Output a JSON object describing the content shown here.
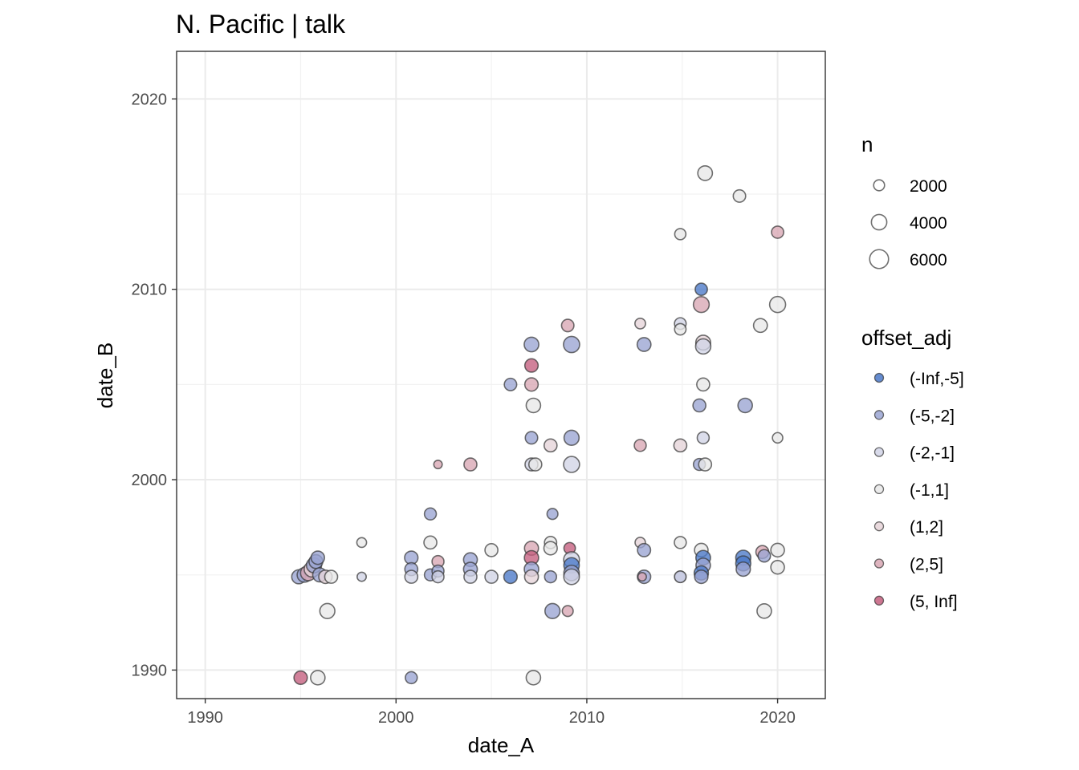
{
  "chart_data": {
    "type": "scatter",
    "title": "N. Pacific | talk",
    "xlabel": "date_A",
    "ylabel": "date_B",
    "xlim": [
      1988.5,
      2022.5
    ],
    "ylim": [
      1988.5,
      2022.5
    ],
    "x_ticks": [
      1990,
      2000,
      2010,
      2020
    ],
    "y_ticks": [
      1990,
      2000,
      2010,
      2020
    ],
    "x_tick_labels": [
      "1990",
      "2000",
      "2010",
      "2020"
    ],
    "y_tick_labels": [
      "1990",
      "2000",
      "2010",
      "2020"
    ],
    "grid": true,
    "legend_position": "right",
    "size_legend": {
      "title": "n",
      "entries": [
        {
          "label": "2000",
          "value": 2000
        },
        {
          "label": "4000",
          "value": 4000
        },
        {
          "label": "6000",
          "value": 6000
        }
      ]
    },
    "color_legend": {
      "title": "offset_adj",
      "entries": [
        {
          "label": "(-Inf,-5]",
          "color": "#4a78c8"
        },
        {
          "label": "(-5,-2]",
          "color": "#9aa4d2"
        },
        {
          "label": "(-2,-1]",
          "color": "#d1d4e6"
        },
        {
          "label": "(-1,1]",
          "color": "#e8e8e8"
        },
        {
          "label": "(1,2]",
          "color": "#e6d3d8"
        },
        {
          "label": "(2,5]",
          "color": "#d8a7b4"
        },
        {
          "label": "(5, Inf]",
          "color": "#c45e7e"
        }
      ]
    },
    "points": [
      {
        "x": 1995.0,
        "y": 1989.6,
        "n": 3000,
        "cat": "(5, Inf]"
      },
      {
        "x": 1995.9,
        "y": 1989.6,
        "n": 3500,
        "cat": "(-1,1]"
      },
      {
        "x": 2000.8,
        "y": 1989.6,
        "n": 2400,
        "cat": "(-5,-2]"
      },
      {
        "x": 2007.2,
        "y": 1989.6,
        "n": 3500,
        "cat": "(-1,1]"
      },
      {
        "x": 1996.4,
        "y": 1993.1,
        "n": 3800,
        "cat": "(-1,1]"
      },
      {
        "x": 2008.2,
        "y": 1993.1,
        "n": 3800,
        "cat": "(-5,-2]"
      },
      {
        "x": 2009.0,
        "y": 1993.1,
        "n": 2000,
        "cat": "(2,5]"
      },
      {
        "x": 2019.3,
        "y": 1993.1,
        "n": 3500,
        "cat": "(-1,1]"
      },
      {
        "x": 1994.9,
        "y": 1994.9,
        "n": 3300,
        "cat": "(-5,-2]"
      },
      {
        "x": 1995.2,
        "y": 1995.0,
        "n": 3600,
        "cat": "(-5,-2]"
      },
      {
        "x": 1995.4,
        "y": 1995.1,
        "n": 4000,
        "cat": "(2,5]"
      },
      {
        "x": 1995.6,
        "y": 1995.3,
        "n": 4200,
        "cat": "(1,2]"
      },
      {
        "x": 1995.7,
        "y": 1995.5,
        "n": 3800,
        "cat": "(-5,-2]"
      },
      {
        "x": 1995.8,
        "y": 1995.7,
        "n": 3200,
        "cat": "(-5,-2]"
      },
      {
        "x": 1995.9,
        "y": 1995.9,
        "n": 3000,
        "cat": "(-5,-2]"
      },
      {
        "x": 1996.0,
        "y": 1995.0,
        "n": 3300,
        "cat": "(-5,-2]"
      },
      {
        "x": 1996.3,
        "y": 1994.9,
        "n": 3000,
        "cat": "(1,2]"
      },
      {
        "x": 1996.6,
        "y": 1994.9,
        "n": 2800,
        "cat": "(-1,1]"
      },
      {
        "x": 1998.2,
        "y": 1996.7,
        "n": 1600,
        "cat": "(-1,1]"
      },
      {
        "x": 1998.2,
        "y": 1994.9,
        "n": 1400,
        "cat": "(-2,-1]"
      },
      {
        "x": 2000.8,
        "y": 1995.9,
        "n": 3000,
        "cat": "(-5,-2]"
      },
      {
        "x": 2000.8,
        "y": 1995.3,
        "n": 2800,
        "cat": "(-5,-2]"
      },
      {
        "x": 2000.8,
        "y": 1994.9,
        "n": 2800,
        "cat": "(-2,-1]"
      },
      {
        "x": 2001.8,
        "y": 1998.2,
        "n": 2400,
        "cat": "(-5,-2]"
      },
      {
        "x": 2001.8,
        "y": 1996.7,
        "n": 2800,
        "cat": "(-1,1]"
      },
      {
        "x": 2001.8,
        "y": 1995.0,
        "n": 2400,
        "cat": "(-5,-2]"
      },
      {
        "x": 2002.2,
        "y": 1995.7,
        "n": 2400,
        "cat": "(2,5]"
      },
      {
        "x": 2002.2,
        "y": 1995.2,
        "n": 2400,
        "cat": "(-5,-2]"
      },
      {
        "x": 2002.2,
        "y": 1994.9,
        "n": 2400,
        "cat": "(-2,-1]"
      },
      {
        "x": 2002.2,
        "y": 2000.8,
        "n": 1200,
        "cat": "(2,5]"
      },
      {
        "x": 2003.9,
        "y": 2000.8,
        "n": 2800,
        "cat": "(2,5]"
      },
      {
        "x": 2003.9,
        "y": 1995.8,
        "n": 3200,
        "cat": "(-5,-2]"
      },
      {
        "x": 2003.9,
        "y": 1995.3,
        "n": 3200,
        "cat": "(-5,-2]"
      },
      {
        "x": 2003.9,
        "y": 1994.9,
        "n": 2800,
        "cat": "(-2,-1]"
      },
      {
        "x": 2005.0,
        "y": 1996.3,
        "n": 2800,
        "cat": "(-1,1]"
      },
      {
        "x": 2005.0,
        "y": 1994.9,
        "n": 2800,
        "cat": "(-2,-1]"
      },
      {
        "x": 2006.0,
        "y": 1994.9,
        "n": 3000,
        "cat": "(-Inf,-5]"
      },
      {
        "x": 2006.0,
        "y": 2005.0,
        "n": 2600,
        "cat": "(-5,-2]"
      },
      {
        "x": 2007.1,
        "y": 2007.1,
        "n": 3600,
        "cat": "(-5,-2]"
      },
      {
        "x": 2007.1,
        "y": 2006.0,
        "n": 3000,
        "cat": "(5, Inf]"
      },
      {
        "x": 2007.1,
        "y": 2005.0,
        "n": 3000,
        "cat": "(2,5]"
      },
      {
        "x": 2007.2,
        "y": 2003.9,
        "n": 3500,
        "cat": "(-1,1]"
      },
      {
        "x": 2007.1,
        "y": 2002.2,
        "n": 2600,
        "cat": "(-5,-2]"
      },
      {
        "x": 2007.1,
        "y": 2000.8,
        "n": 2800,
        "cat": "(-2,-1]"
      },
      {
        "x": 2007.3,
        "y": 2000.8,
        "n": 2800,
        "cat": "(-1,1]"
      },
      {
        "x": 2007.1,
        "y": 1996.4,
        "n": 3300,
        "cat": "(2,5]"
      },
      {
        "x": 2007.1,
        "y": 1995.9,
        "n": 3400,
        "cat": "(5, Inf]"
      },
      {
        "x": 2007.1,
        "y": 1995.3,
        "n": 3500,
        "cat": "(-5,-2]"
      },
      {
        "x": 2007.1,
        "y": 1994.9,
        "n": 3200,
        "cat": "(1,2]"
      },
      {
        "x": 2008.1,
        "y": 2001.8,
        "n": 2800,
        "cat": "(1,2]"
      },
      {
        "x": 2008.2,
        "y": 1998.2,
        "n": 2000,
        "cat": "(-5,-2]"
      },
      {
        "x": 2008.1,
        "y": 1996.7,
        "n": 2500,
        "cat": "(-1,1]"
      },
      {
        "x": 2008.1,
        "y": 1996.4,
        "n": 3000,
        "cat": "(-1,1]"
      },
      {
        "x": 2008.1,
        "y": 1994.9,
        "n": 2400,
        "cat": "(-5,-2]"
      },
      {
        "x": 2009.0,
        "y": 2008.1,
        "n": 2600,
        "cat": "(2,5]"
      },
      {
        "x": 2009.1,
        "y": 1996.4,
        "n": 2200,
        "cat": "(5, Inf]"
      },
      {
        "x": 2009.2,
        "y": 2007.1,
        "n": 4400,
        "cat": "(-5,-2]"
      },
      {
        "x": 2009.2,
        "y": 2002.2,
        "n": 3800,
        "cat": "(-5,-2]"
      },
      {
        "x": 2009.2,
        "y": 2000.8,
        "n": 4300,
        "cat": "(-2,-1]"
      },
      {
        "x": 2009.2,
        "y": 1995.8,
        "n": 4200,
        "cat": "(-2,-1]"
      },
      {
        "x": 2009.2,
        "y": 1995.5,
        "n": 4000,
        "cat": "(-Inf,-5]"
      },
      {
        "x": 2009.2,
        "y": 1995.1,
        "n": 4000,
        "cat": "(-5,-2]"
      },
      {
        "x": 2009.2,
        "y": 1994.9,
        "n": 4100,
        "cat": "(-2,-1]"
      },
      {
        "x": 2012.8,
        "y": 2008.2,
        "n": 1900,
        "cat": "(1,2]"
      },
      {
        "x": 2013.0,
        "y": 2007.1,
        "n": 3200,
        "cat": "(-5,-2]"
      },
      {
        "x": 2012.8,
        "y": 2001.8,
        "n": 2400,
        "cat": "(2,5]"
      },
      {
        "x": 2012.8,
        "y": 1996.7,
        "n": 1800,
        "cat": "(1,2]"
      },
      {
        "x": 2013.0,
        "y": 1996.3,
        "n": 2900,
        "cat": "(-5,-2]"
      },
      {
        "x": 2013.0,
        "y": 1994.9,
        "n": 3000,
        "cat": "(-5,-2]"
      },
      {
        "x": 2012.9,
        "y": 1994.9,
        "n": 1200,
        "cat": "(2,5]"
      },
      {
        "x": 2014.9,
        "y": 2012.9,
        "n": 2100,
        "cat": "(-1,1]"
      },
      {
        "x": 2014.9,
        "y": 2008.2,
        "n": 2300,
        "cat": "(-2,-1]"
      },
      {
        "x": 2014.9,
        "y": 2007.9,
        "n": 2200,
        "cat": "(-1,1]"
      },
      {
        "x": 2014.9,
        "y": 2001.8,
        "n": 2800,
        "cat": "(1,2]"
      },
      {
        "x": 2014.9,
        "y": 1996.7,
        "n": 2400,
        "cat": "(-1,1]"
      },
      {
        "x": 2014.9,
        "y": 1994.9,
        "n": 2000,
        "cat": "(-5,-2]"
      },
      {
        "x": 2014.9,
        "y": 1994.9,
        "n": 2300,
        "cat": "(-2,-1]"
      },
      {
        "x": 2016.2,
        "y": 2016.1,
        "n": 3600,
        "cat": "(-1,1]"
      },
      {
        "x": 2016.0,
        "y": 2010.0,
        "n": 2500,
        "cat": "(-Inf,-5]"
      },
      {
        "x": 2016.0,
        "y": 2009.2,
        "n": 4200,
        "cat": "(2,5]"
      },
      {
        "x": 2016.1,
        "y": 2007.2,
        "n": 3700,
        "cat": "(1,2]"
      },
      {
        "x": 2016.1,
        "y": 2007.0,
        "n": 3900,
        "cat": "(-2,-1]"
      },
      {
        "x": 2016.1,
        "y": 2005.0,
        "n": 2800,
        "cat": "(-1,1]"
      },
      {
        "x": 2015.9,
        "y": 2003.9,
        "n": 2800,
        "cat": "(-5,-2]"
      },
      {
        "x": 2016.1,
        "y": 2002.2,
        "n": 2400,
        "cat": "(-2,-1]"
      },
      {
        "x": 2015.9,
        "y": 2000.8,
        "n": 2400,
        "cat": "(-5,-2]"
      },
      {
        "x": 2016.2,
        "y": 2000.8,
        "n": 2800,
        "cat": "(-1,1]"
      },
      {
        "x": 2016.0,
        "y": 1996.3,
        "n": 3100,
        "cat": "(-1,1]"
      },
      {
        "x": 2016.1,
        "y": 1995.9,
        "n": 3600,
        "cat": "(-Inf,-5]"
      },
      {
        "x": 2016.1,
        "y": 1995.5,
        "n": 3500,
        "cat": "(-5,-2]"
      },
      {
        "x": 2016.0,
        "y": 1995.1,
        "n": 3400,
        "cat": "(-Inf,-5]"
      },
      {
        "x": 2016.0,
        "y": 1994.9,
        "n": 3000,
        "cat": "(-5,-2]"
      },
      {
        "x": 2018.0,
        "y": 2014.9,
        "n": 2600,
        "cat": "(-1,1]"
      },
      {
        "x": 2018.3,
        "y": 2003.9,
        "n": 3500,
        "cat": "(-5,-2]"
      },
      {
        "x": 2018.2,
        "y": 1995.9,
        "n": 3800,
        "cat": "(-Inf,-5]"
      },
      {
        "x": 2018.2,
        "y": 1995.6,
        "n": 3800,
        "cat": "(-Inf,-5]"
      },
      {
        "x": 2018.2,
        "y": 1995.3,
        "n": 3400,
        "cat": "(-5,-2]"
      },
      {
        "x": 2019.1,
        "y": 2008.1,
        "n": 3200,
        "cat": "(-1,1]"
      },
      {
        "x": 2019.2,
        "y": 1996.2,
        "n": 2800,
        "cat": "(2,5]"
      },
      {
        "x": 2019.3,
        "y": 1996.0,
        "n": 2600,
        "cat": "(-5,-2]"
      },
      {
        "x": 2020.0,
        "y": 2013.0,
        "n": 2500,
        "cat": "(2,5]"
      },
      {
        "x": 2020.0,
        "y": 2009.2,
        "n": 4300,
        "cat": "(-1,1]"
      },
      {
        "x": 2020.0,
        "y": 2002.2,
        "n": 1800,
        "cat": "(-1,1]"
      },
      {
        "x": 2020.0,
        "y": 1996.3,
        "n": 3100,
        "cat": "(-1,1]"
      },
      {
        "x": 2020.0,
        "y": 1995.4,
        "n": 3100,
        "cat": "(-1,1]"
      }
    ]
  }
}
